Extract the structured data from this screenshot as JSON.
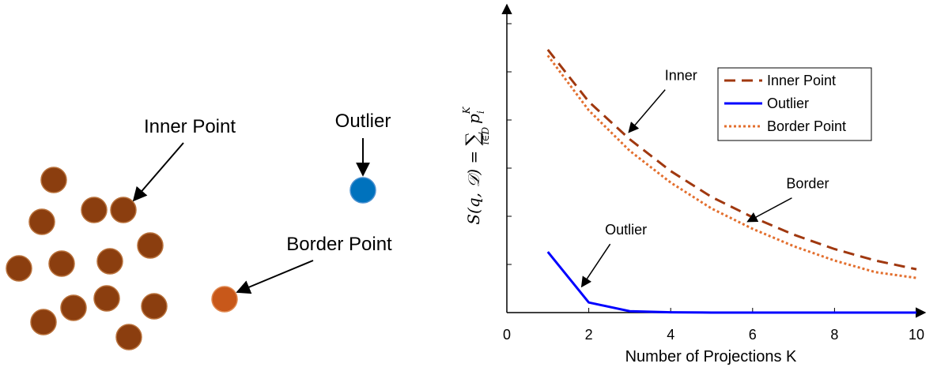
{
  "diagram": {
    "inner_label": "Inner Point",
    "outlier_label": "Outlier",
    "border_label": "Border Point",
    "colors": {
      "inner": "#8B3E0F",
      "inner_stroke": "#B8703A",
      "outlier": "#0072BD",
      "border": "#C8581A"
    }
  },
  "chart_data": {
    "type": "line",
    "xlabel": "Number of Projections K",
    "ylabel_parts": {
      "lhs": "S(q, 𝒟) = ",
      "sum": "∑",
      "sub": "i∈D",
      "p": "p",
      "pi": "i",
      "pK": "K"
    },
    "xlim": [
      0,
      10
    ],
    "ylim": [
      0,
      1
    ],
    "xticks": [
      "0",
      "2",
      "4",
      "6",
      "8",
      "10"
    ],
    "x": [
      1,
      2,
      3,
      4,
      5,
      6,
      7,
      8,
      9,
      10
    ],
    "series": [
      {
        "name": "Inner Point",
        "style": "dashed",
        "color": "#A0380F",
        "values": [
          0.91,
          0.73,
          0.6,
          0.49,
          0.4,
          0.33,
          0.27,
          0.22,
          0.18,
          0.15
        ]
      },
      {
        "name": "Outlier",
        "style": "solid",
        "color": "#0000FF",
        "values": [
          0.21,
          0.035,
          0.005,
          0.001,
          0.0,
          0.0,
          0.0,
          0.0,
          0.0,
          0.0
        ]
      },
      {
        "name": "Border Point",
        "style": "dotted",
        "color": "#E36F2E",
        "values": [
          0.89,
          0.7,
          0.56,
          0.45,
          0.36,
          0.29,
          0.23,
          0.18,
          0.14,
          0.12
        ]
      }
    ],
    "annotations": [
      {
        "text": "Inner",
        "series": 0,
        "x": 2.9
      },
      {
        "text": "Border",
        "series": 2,
        "x": 5.8
      },
      {
        "text": "Outlier",
        "series": 1,
        "x": 1.75
      }
    ]
  }
}
